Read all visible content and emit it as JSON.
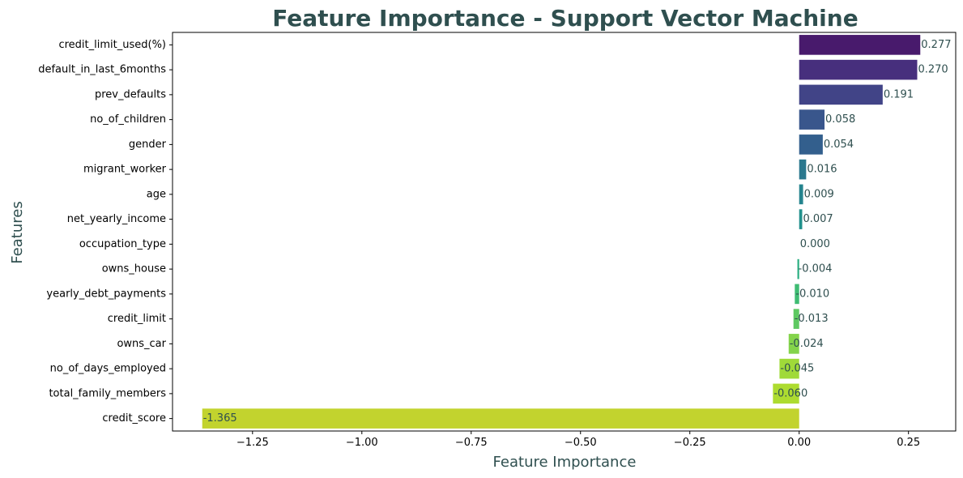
{
  "chart_data": {
    "type": "bar",
    "orientation": "horizontal",
    "title": "Feature Importance - Support Vector Machine",
    "xlabel": "Feature Importance",
    "ylabel": "Features",
    "xlim": [
      -1.433,
      0.358
    ],
    "xticks": [
      -1.25,
      -1.0,
      -0.75,
      -0.5,
      -0.25,
      0.0,
      0.25
    ],
    "xtick_labels": [
      "−1.25",
      "−1.00",
      "−0.75",
      "−0.50",
      "−0.25",
      "0.00",
      "0.25"
    ],
    "grid": false,
    "legend": "none",
    "categories": [
      "credit_limit_used(%)",
      "default_in_last_6months",
      "prev_defaults",
      "no_of_children",
      "gender",
      "migrant_worker",
      "age",
      "net_yearly_income",
      "occupation_type",
      "owns_house",
      "yearly_debt_payments",
      "credit_limit",
      "owns_car",
      "no_of_days_employed",
      "total_family_members",
      "credit_score"
    ],
    "values": [
      0.277,
      0.27,
      0.191,
      0.058,
      0.054,
      0.016,
      0.009,
      0.007,
      0.0,
      -0.004,
      -0.01,
      -0.013,
      -0.024,
      -0.045,
      -0.06,
      -1.365
    ],
    "value_labels": [
      "0.277",
      "0.270",
      "0.191",
      "0.058",
      "0.054",
      "0.016",
      "0.009",
      "0.007",
      "0.000",
      "-0.004",
      "-0.010",
      "-0.013",
      "-0.024",
      "-0.045",
      "-0.060",
      "-1.365"
    ],
    "colors": [
      "#481a6c",
      "#472f7d",
      "#414487",
      "#39568c",
      "#335f8d",
      "#2a788e",
      "#25848e",
      "#21918c",
      "#1fa088",
      "#28ae80",
      "#3fbc73",
      "#5ec962",
      "#84d44b",
      "#a0da39",
      "#addc30",
      "#c2d32e"
    ],
    "title_color": "#2f4f4f",
    "label_color": "#2f4f4f"
  }
}
